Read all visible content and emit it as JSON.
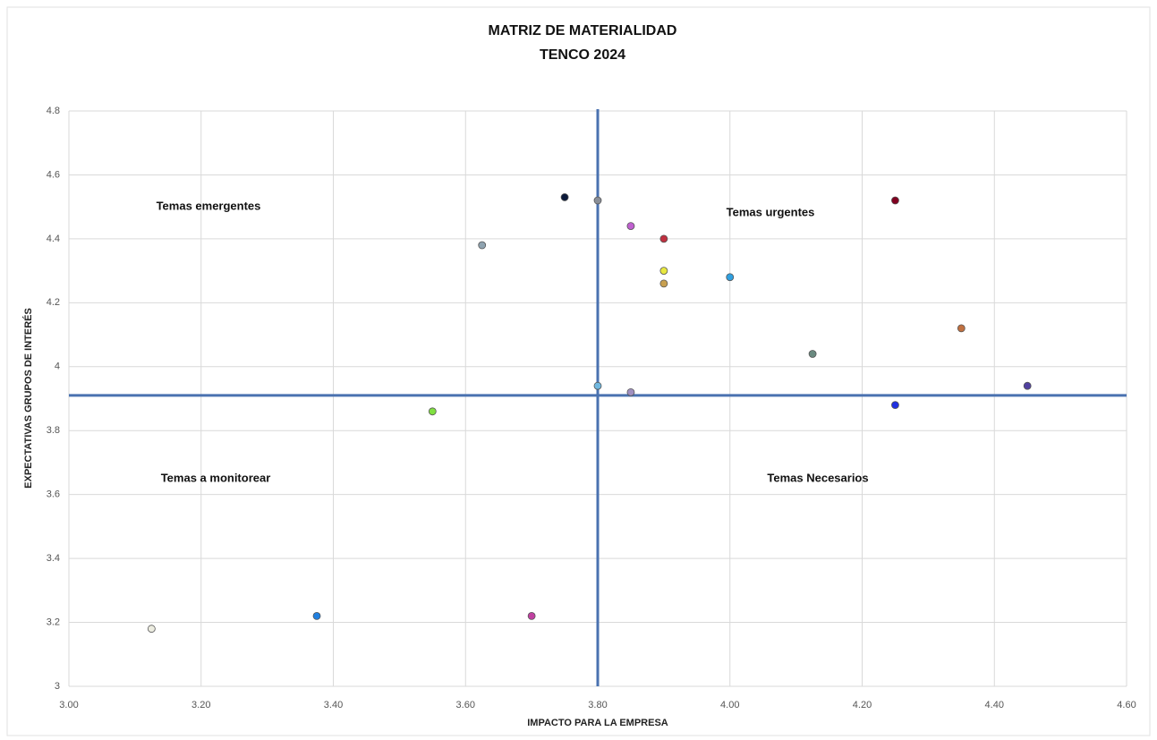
{
  "chart_data": {
    "type": "scatter",
    "title": "MATRIZ DE MATERIALIDAD",
    "subtitle": "TENCO 2024",
    "x_label": "IMPACTO PARA LA EMPRESA",
    "y_label": "EXPECTATIVAS GRUPOS DE INTERÉS",
    "x": [
      3.75,
      3.8,
      3.625,
      3.85,
      3.9,
      3.9,
      3.9,
      4.0,
      4.25,
      4.35,
      4.125,
      4.45,
      4.25,
      3.8,
      3.85,
      3.55,
      3.375,
      3.125,
      3.7
    ],
    "values": [
      4.53,
      4.52,
      4.38,
      4.44,
      4.4,
      4.3,
      4.26,
      4.28,
      4.52,
      4.12,
      4.04,
      3.94,
      3.88,
      3.94,
      3.92,
      3.86,
      3.22,
      3.18,
      3.22
    ],
    "colors": [
      "#0b1a3a",
      "#8a8f98",
      "#8fa3b0",
      "#c060d0",
      "#c03040",
      "#e8e840",
      "#c8a050",
      "#30a0e0",
      "#800020",
      "#c07040",
      "#6a8a80",
      "#5040a0",
      "#2030e0",
      "#70b8e0",
      "#a090c0",
      "#80e040",
      "#2080e0",
      "#ecece0",
      "#c040a0"
    ],
    "quadrant_lines": {
      "x": 3.8,
      "y": 3.91,
      "color": "#4a72b0"
    },
    "annotations": [
      "Temas emergentes",
      "Temas urgentes",
      "Temas a monitorear",
      "Temas Necesarios"
    ],
    "xlim": [
      3.0,
      4.6
    ],
    "xticks": [
      {
        "value": 3.0,
        "label": "3.00"
      },
      {
        "value": 3.2,
        "label": "3.20"
      },
      {
        "value": 3.4,
        "label": "3.40"
      },
      {
        "value": 3.6,
        "label": "3.60"
      },
      {
        "value": 3.8,
        "label": "3.80"
      },
      {
        "value": 4.0,
        "label": "4.00"
      },
      {
        "value": 4.2,
        "label": "4.20"
      },
      {
        "value": 4.4,
        "label": "4.40"
      },
      {
        "value": 4.6,
        "label": "4.60"
      }
    ],
    "ylim": [
      3,
      4.8
    ],
    "yticks": [
      3,
      3.2,
      3.4,
      3.6,
      3.8,
      4,
      4.2,
      4.4,
      4.6,
      4.8
    ],
    "grid": true
  }
}
